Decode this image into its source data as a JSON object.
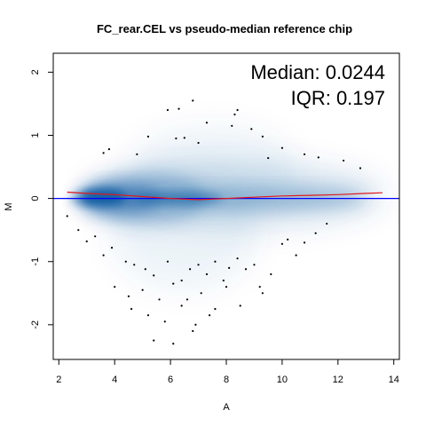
{
  "chart_data": {
    "type": "scatter",
    "title": "FC_rear.CEL vs pseudo-median reference chip",
    "xlabel": "A",
    "ylabel": "M",
    "xlim": [
      1.8,
      14.2
    ],
    "ylim": [
      -2.55,
      2.3
    ],
    "x_ticks": [
      "2",
      "4",
      "6",
      "8",
      "10",
      "12",
      "14"
    ],
    "y_ticks": [
      "-2",
      "-1",
      "0",
      "1",
      "2"
    ],
    "grid": false,
    "annotations": {
      "median": "Median: 0.0244",
      "iqr": "IQR: 0.197"
    },
    "reference_line": {
      "y": 0,
      "color": "#0000ff"
    },
    "loess_fit": {
      "color": "#e0181b",
      "x": [
        2.3,
        3,
        4,
        5,
        6,
        7,
        8,
        9,
        10,
        11,
        12,
        13,
        13.6
      ],
      "y": [
        0.1,
        0.08,
        0.06,
        0.03,
        0.0,
        -0.02,
        0.0,
        0.02,
        0.04,
        0.05,
        0.06,
        0.08,
        0.09
      ]
    },
    "density_color": "#08519c",
    "outliers": {
      "x": [
        6.8,
        5.9,
        6.3,
        8.4,
        8.3,
        8.2,
        7.3,
        6.2,
        8.9,
        9.3,
        3.6,
        3.8,
        5.2,
        4.8,
        6.5,
        7.0,
        10.8,
        11.3,
        12.2,
        12.8,
        9.5,
        10.0,
        2.3,
        2.7,
        3.0,
        3.3,
        3.6,
        3.9,
        4.4,
        4.7,
        5.1,
        5.4,
        5.9,
        6.4,
        6.7,
        7.0,
        7.3,
        7.6,
        7.9,
        8.1,
        8.4,
        8.7,
        9.0,
        9.3,
        9.6,
        10.0,
        10.2,
        10.5,
        10.8,
        11.2,
        11.6,
        4.0,
        4.5,
        5.0,
        5.6,
        6.1,
        6.6,
        7.1,
        7.6,
        8.0,
        8.5,
        9.2,
        4.6,
        5.2,
        5.8,
        6.4,
        6.9,
        7.4,
        5.4,
        6.1,
        6.8
      ],
      "y": [
        1.55,
        1.4,
        1.42,
        1.4,
        1.33,
        1.15,
        1.2,
        0.95,
        1.1,
        0.98,
        0.72,
        0.78,
        0.98,
        0.7,
        0.96,
        0.88,
        0.7,
        0.65,
        0.6,
        0.48,
        0.64,
        0.8,
        -0.28,
        -0.5,
        -0.68,
        -0.6,
        -0.9,
        -0.78,
        -1.0,
        -1.05,
        -1.12,
        -1.22,
        -1.0,
        -1.3,
        -1.12,
        -1.05,
        -1.2,
        -1.0,
        -1.3,
        -1.1,
        -0.95,
        -1.12,
        -1.05,
        -1.5,
        -1.2,
        -0.72,
        -0.65,
        -0.9,
        -0.7,
        -0.55,
        -0.4,
        -1.4,
        -1.55,
        -1.45,
        -1.6,
        -1.35,
        -1.6,
        -1.5,
        -1.75,
        -1.4,
        -1.7,
        -1.4,
        -1.75,
        -1.85,
        -1.95,
        -1.7,
        -2.0,
        -1.85,
        -2.25,
        -2.3,
        -2.1
      ]
    }
  }
}
